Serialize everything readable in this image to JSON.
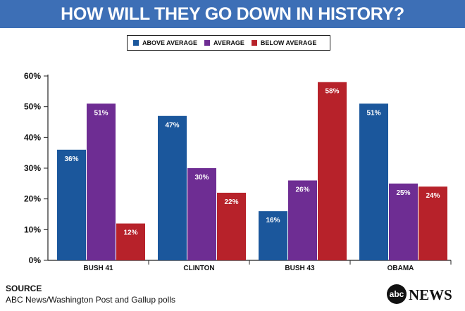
{
  "title": "HOW WILL THEY GO DOWN IN HISTORY?",
  "source": {
    "heading": "SOURCE",
    "text": "ABC News/Washington Post and Gallup polls"
  },
  "logo": {
    "mark": "abc",
    "word": "NEWS"
  },
  "colors": {
    "title_bar": "#3d6fb6",
    "above_average": "#1b579c",
    "average": "#6e2d93",
    "below_average": "#b7222a"
  },
  "chart_data": {
    "type": "bar",
    "title": "HOW WILL THEY GO DOWN IN HISTORY?",
    "categories": [
      "BUSH 41",
      "CLINTON",
      "BUSH 43",
      "OBAMA"
    ],
    "series": [
      {
        "name": "ABOVE AVERAGE",
        "color": "#1b579c",
        "values": [
          36,
          47,
          16,
          51
        ],
        "labels": [
          "36%",
          "47%",
          "16%",
          "51%"
        ]
      },
      {
        "name": "AVERAGE",
        "color": "#6e2d93",
        "values": [
          51,
          30,
          26,
          25
        ],
        "labels": [
          "51%",
          "30%",
          "26%",
          "25%"
        ]
      },
      {
        "name": "BELOW AVERAGE",
        "color": "#b7222a",
        "values": [
          12,
          22,
          58,
          24
        ],
        "labels": [
          "12%",
          "22%",
          "58%",
          "24%"
        ]
      }
    ],
    "yticks": [
      "0%",
      "10%",
      "20%",
      "30%",
      "40%",
      "50%",
      "60%"
    ],
    "ylim": [
      0,
      60
    ],
    "legend_position": "top-center",
    "grid": false
  }
}
